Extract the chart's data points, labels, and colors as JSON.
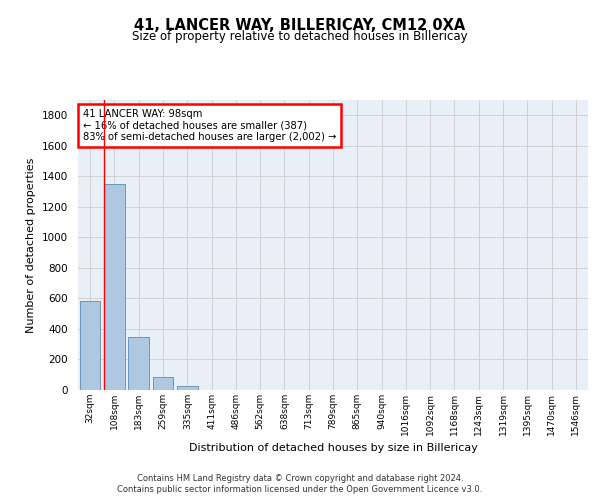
{
  "title": "41, LANCER WAY, BILLERICAY, CM12 0XA",
  "subtitle": "Size of property relative to detached houses in Billericay",
  "xlabel": "Distribution of detached houses by size in Billericay",
  "ylabel": "Number of detached properties",
  "categories": [
    "32sqm",
    "108sqm",
    "183sqm",
    "259sqm",
    "335sqm",
    "411sqm",
    "486sqm",
    "562sqm",
    "638sqm",
    "713sqm",
    "789sqm",
    "865sqm",
    "940sqm",
    "1016sqm",
    "1092sqm",
    "1168sqm",
    "1243sqm",
    "1319sqm",
    "1395sqm",
    "1470sqm",
    "1546sqm"
  ],
  "values": [
    580,
    1350,
    350,
    85,
    28,
    0,
    0,
    0,
    0,
    0,
    0,
    0,
    0,
    0,
    0,
    0,
    0,
    0,
    0,
    0,
    0
  ],
  "bar_color": "#adc8e0",
  "bar_edge_color": "#6699bb",
  "annotation_text": "41 LANCER WAY: 98sqm\n← 16% of detached houses are smaller (387)\n83% of semi-detached houses are larger (2,002) →",
  "ylim": [
    0,
    1900
  ],
  "yticks": [
    0,
    200,
    400,
    600,
    800,
    1000,
    1200,
    1400,
    1600,
    1800
  ],
  "grid_color": "#cccccc",
  "bg_color": "#e8eff6",
  "footer_line1": "Contains HM Land Registry data © Crown copyright and database right 2024.",
  "footer_line2": "Contains public sector information licensed under the Open Government Licence v3.0."
}
